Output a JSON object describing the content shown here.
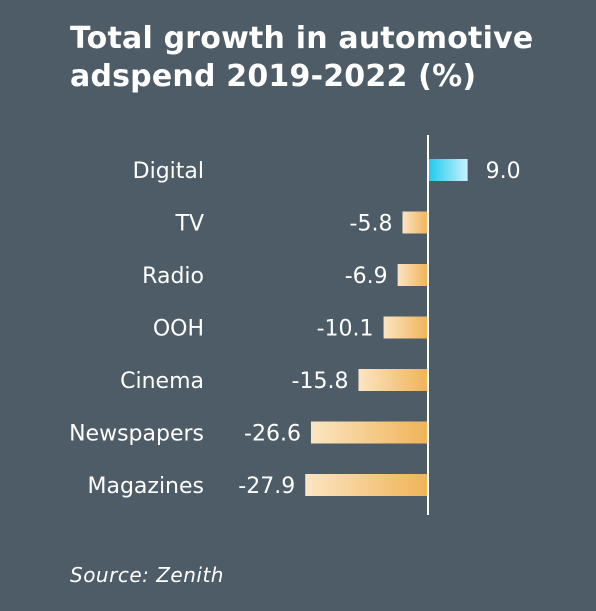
{
  "chart_data": {
    "type": "bar",
    "orientation": "horizontal",
    "title_lines": [
      "Total growth in automotive",
      "adspend 2019-2022 (%)"
    ],
    "categories": [
      "Digital",
      "TV",
      "Radio",
      "OOH",
      "Cinema",
      "Newspapers",
      "Magazines"
    ],
    "values": [
      9.0,
      -5.8,
      -6.9,
      -10.1,
      -15.8,
      -26.6,
      -27.9
    ],
    "value_labels": [
      "9.0",
      "-5.8",
      "-6.9",
      "-10.1",
      "-15.8",
      "-26.6",
      "-27.9"
    ],
    "xlim": [
      -27.9,
      9.0
    ],
    "grid": false,
    "legend": "none",
    "colors": {
      "positive": [
        "#1ec8ee",
        "#c8f2fb"
      ],
      "negative": [
        "#f0b357",
        "#fbe5c2"
      ],
      "background": "#4d5c67",
      "axis": "#ffffff"
    },
    "source": "Source: Zenith"
  }
}
